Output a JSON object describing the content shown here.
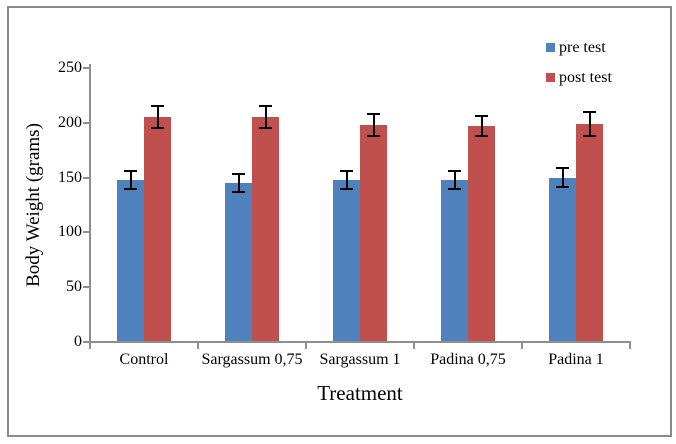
{
  "chart_data": {
    "type": "bar",
    "title": "",
    "xlabel": "Treatment",
    "ylabel": "Body Weight (grams)",
    "categories": [
      "Control",
      "Sargassum 0,75",
      "Sargassum 1",
      "Padina 0,75",
      "Padina 1"
    ],
    "series": [
      {
        "name": "pre test",
        "color": "#4F81BD",
        "values": [
          148,
          145,
          148,
          148,
          150
        ],
        "errors": [
          8,
          8,
          8,
          8,
          9
        ]
      },
      {
        "name": "post test",
        "color": "#C0504D",
        "values": [
          205,
          205,
          198,
          197,
          199
        ],
        "errors": [
          10,
          10,
          10,
          9,
          11
        ]
      }
    ],
    "ylim": [
      0,
      250
    ],
    "yticks": [
      0,
      50,
      100,
      150,
      200,
      250
    ],
    "grid": false,
    "legend_position": "top-right",
    "error_bars": true
  },
  "colors": {
    "axis": "#8E8E8E",
    "frame_border": "#8A8A8A",
    "error_bar": "#000000",
    "background": "#FFFFFF",
    "text": "#000000"
  }
}
